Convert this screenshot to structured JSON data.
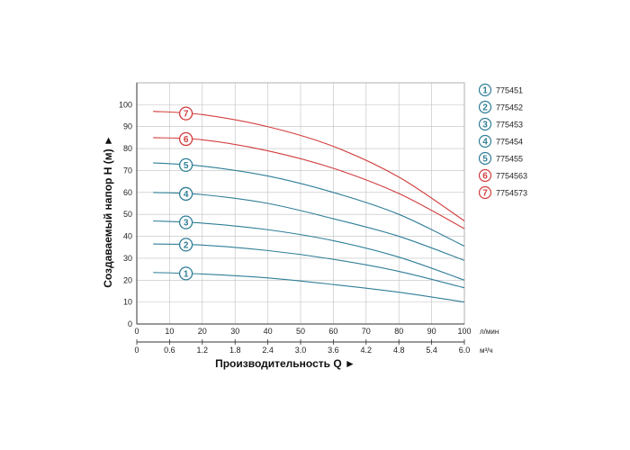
{
  "chart_data": {
    "type": "line",
    "xlabel": "Производительность Q ►",
    "ylabel": "Создаваемый напор H (м) ►",
    "x_unit": "л/мин",
    "x2_unit": "м³/ч",
    "xlim": [
      0,
      100
    ],
    "ylim": [
      0,
      110
    ],
    "x_ticks": [
      "0",
      "10",
      "20",
      "30",
      "40",
      "50",
      "60",
      "70",
      "80",
      "90",
      "100"
    ],
    "x2_ticks": [
      "0",
      "0.6",
      "1.2",
      "1.8",
      "2.4",
      "3.0",
      "3.6",
      "4.2",
      "4.8",
      "5.4",
      "6.0"
    ],
    "y_ticks": [
      "0",
      "10",
      "20",
      "30",
      "40",
      "50",
      "60",
      "70",
      "80",
      "90",
      "100"
    ],
    "grid": true,
    "legend_position": "right",
    "colors": {
      "blue": "#2f7e98",
      "red": "#d23c3c",
      "grid": "#bfbfbf"
    },
    "x": [
      5,
      20,
      40,
      60,
      80,
      100
    ],
    "series": [
      {
        "label": "1",
        "name": "775451",
        "color": "blue",
        "values": [
          23.5,
          22.8,
          21.0,
          18.0,
          14.5,
          10.0
        ]
      },
      {
        "label": "2",
        "name": "775452",
        "color": "blue",
        "values": [
          36.5,
          36.0,
          33.5,
          29.5,
          24.0,
          16.5
        ]
      },
      {
        "label": "3",
        "name": "775453",
        "color": "blue",
        "values": [
          47.0,
          46.0,
          43.0,
          38.0,
          30.5,
          20.0
        ]
      },
      {
        "label": "4",
        "name": "775454",
        "color": "blue",
        "values": [
          60.0,
          59.0,
          55.0,
          48.0,
          40.0,
          29.0
        ]
      },
      {
        "label": "5",
        "name": "775455",
        "color": "blue",
        "values": [
          73.5,
          72.0,
          67.5,
          60.0,
          50.0,
          35.5
        ]
      },
      {
        "label": "6",
        "name": "7754563",
        "color": "red",
        "values": [
          85.0,
          84.0,
          79.0,
          71.0,
          59.5,
          43.5
        ]
      },
      {
        "label": "7",
        "name": "7754573",
        "color": "red",
        "values": [
          97.0,
          95.5,
          90.0,
          81.0,
          67.0,
          47.0
        ]
      }
    ],
    "marker_x": 15
  }
}
